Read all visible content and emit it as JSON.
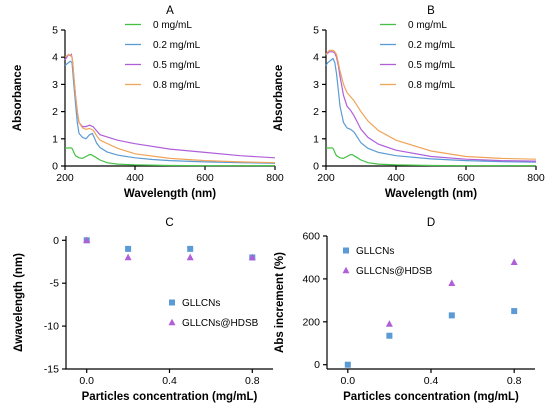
{
  "chart_data": [
    {
      "type": "line",
      "title": "A",
      "xlabel": "Wavelength (nm)",
      "ylabel": "Absorbance",
      "xlim": [
        200,
        800
      ],
      "ylim": [
        0,
        5
      ],
      "xticks": [
        200,
        400,
        600,
        800
      ],
      "yticks": [
        0,
        1,
        2,
        3,
        4,
        5
      ],
      "legend": "top-left",
      "series": [
        {
          "name": "0 mg/mL",
          "color": "#44c144",
          "x": [
            200,
            205,
            210,
            215,
            218,
            220,
            222,
            225,
            230,
            240,
            250,
            260,
            270,
            275,
            280,
            290,
            300,
            320,
            350,
            400,
            500,
            600,
            700,
            800
          ],
          "y": [
            0.65,
            0.66,
            0.66,
            0.67,
            0.66,
            0.65,
            0.6,
            0.5,
            0.38,
            0.3,
            0.28,
            0.35,
            0.42,
            0.42,
            0.38,
            0.3,
            0.22,
            0.12,
            0.07,
            0.04,
            0.02,
            0.01,
            0.01,
            0.01
          ]
        },
        {
          "name": "0.2 mg/mL",
          "color": "#5b9bd5",
          "x": [
            200,
            205,
            210,
            215,
            218,
            220,
            222,
            225,
            230,
            235,
            240,
            250,
            260,
            270,
            278,
            285,
            290,
            300,
            320,
            350,
            400,
            450,
            500,
            600,
            700,
            800
          ],
          "y": [
            3.7,
            3.75,
            3.8,
            3.85,
            3.82,
            3.8,
            3.5,
            3.0,
            2.3,
            1.6,
            1.2,
            1.05,
            1.0,
            1.15,
            1.2,
            1.0,
            0.85,
            0.68,
            0.52,
            0.4,
            0.3,
            0.24,
            0.2,
            0.15,
            0.12,
            0.1
          ]
        },
        {
          "name": "0.5 mg/mL",
          "color": "#b05fd8",
          "x": [
            200,
            205,
            210,
            215,
            218,
            220,
            222,
            225,
            230,
            235,
            240,
            250,
            260,
            270,
            280,
            290,
            300,
            350,
            400,
            500,
            600,
            700,
            800
          ],
          "y": [
            3.9,
            4.0,
            4.1,
            4.05,
            4.1,
            4.0,
            3.8,
            3.3,
            2.6,
            2.0,
            1.6,
            1.45,
            1.45,
            1.5,
            1.45,
            1.3,
            1.15,
            0.95,
            0.82,
            0.62,
            0.5,
            0.38,
            0.3
          ]
        },
        {
          "name": "0.8 mg/mL",
          "color": "#f0a45a",
          "x": [
            200,
            205,
            210,
            215,
            218,
            220,
            222,
            225,
            230,
            235,
            240,
            250,
            260,
            270,
            280,
            290,
            300,
            350,
            400,
            500,
            600,
            700,
            800
          ],
          "y": [
            4.0,
            4.05,
            4.1,
            4.08,
            4.05,
            4.0,
            3.8,
            3.3,
            2.6,
            2.0,
            1.6,
            1.4,
            1.35,
            1.38,
            1.32,
            1.12,
            0.95,
            0.65,
            0.45,
            0.28,
            0.2,
            0.15,
            0.12
          ]
        }
      ]
    },
    {
      "type": "line",
      "title": "B",
      "xlabel": "Wavelength (nm)",
      "ylabel": "Absorbance",
      "xlim": [
        200,
        800
      ],
      "ylim": [
        0,
        5
      ],
      "xticks": [
        200,
        400,
        600,
        800
      ],
      "yticks": [
        0,
        1,
        2,
        3,
        4,
        5
      ],
      "legend": "top-right",
      "series": [
        {
          "name": "0 mg/mL",
          "color": "#44c144",
          "x": [
            200,
            205,
            210,
            215,
            218,
            220,
            222,
            225,
            230,
            240,
            250,
            260,
            270,
            275,
            280,
            290,
            300,
            320,
            350,
            400,
            500,
            600,
            700,
            800
          ],
          "y": [
            0.65,
            0.66,
            0.66,
            0.67,
            0.66,
            0.65,
            0.6,
            0.5,
            0.38,
            0.3,
            0.28,
            0.35,
            0.42,
            0.42,
            0.38,
            0.3,
            0.22,
            0.12,
            0.07,
            0.04,
            0.02,
            0.01,
            0.01,
            0.01
          ]
        },
        {
          "name": "0.2 mg/mL",
          "color": "#5b9bd5",
          "x": [
            200,
            205,
            210,
            215,
            220,
            225,
            230,
            235,
            240,
            250,
            260,
            270,
            280,
            290,
            300,
            320,
            350,
            400,
            500,
            600,
            700,
            800
          ],
          "y": [
            3.7,
            3.8,
            3.85,
            3.9,
            3.95,
            3.8,
            3.4,
            2.8,
            2.2,
            1.6,
            1.4,
            1.35,
            1.25,
            1.05,
            0.85,
            0.65,
            0.5,
            0.38,
            0.26,
            0.2,
            0.16,
            0.14
          ]
        },
        {
          "name": "0.5 mg/mL",
          "color": "#b05fd8",
          "x": [
            200,
            205,
            210,
            215,
            220,
            225,
            230,
            235,
            240,
            250,
            260,
            270,
            280,
            290,
            300,
            320,
            350,
            400,
            500,
            600,
            700,
            800
          ],
          "y": [
            4.1,
            4.15,
            4.2,
            4.2,
            4.2,
            4.15,
            4.0,
            3.7,
            3.3,
            2.6,
            2.2,
            2.05,
            1.85,
            1.6,
            1.35,
            1.05,
            0.8,
            0.58,
            0.35,
            0.25,
            0.2,
            0.18
          ]
        },
        {
          "name": "0.8 mg/mL",
          "color": "#f0a45a",
          "x": [
            200,
            205,
            210,
            215,
            220,
            225,
            230,
            235,
            240,
            250,
            260,
            270,
            280,
            290,
            300,
            320,
            350,
            400,
            500,
            600,
            700,
            800
          ],
          "y": [
            4.1,
            4.2,
            4.25,
            4.25,
            4.25,
            4.2,
            4.1,
            3.8,
            3.5,
            3.0,
            2.7,
            2.55,
            2.4,
            2.2,
            2.0,
            1.65,
            1.3,
            0.95,
            0.55,
            0.35,
            0.28,
            0.25
          ]
        }
      ]
    },
    {
      "type": "scatter",
      "title": "C",
      "xlabel": "Particles concentration (mg/mL)",
      "ylabel": "Δwavelength (nm)",
      "xlim": [
        -0.1,
        0.9
      ],
      "ylim": [
        -15,
        0.5
      ],
      "xticks": [
        0.0,
        0.4,
        0.8
      ],
      "xticklabels": [
        "0.0",
        "0.4",
        "0.8"
      ],
      "yticks": [
        0,
        -5,
        -10,
        -15
      ],
      "legend": "center-right",
      "series": [
        {
          "name": "GLLCNs",
          "color": "#5b9bd5",
          "marker": "square",
          "x": [
            0.0,
            0.2,
            0.5,
            0.8
          ],
          "y": [
            0,
            -1,
            -1,
            -2
          ]
        },
        {
          "name": "GLLCNs@HDSB",
          "color": "#b05fd8",
          "marker": "triangle",
          "x": [
            0.0,
            0.2,
            0.5,
            0.8
          ],
          "y": [
            0,
            -2,
            -2,
            -2
          ]
        }
      ]
    },
    {
      "type": "scatter",
      "title": "D",
      "xlabel": "Particles concentration (mg/mL)",
      "ylabel": "Abs increment (%)",
      "xlim": [
        -0.1,
        0.9
      ],
      "ylim": [
        -20,
        600
      ],
      "xticks": [
        0.0,
        0.4,
        0.8
      ],
      "xticklabels": [
        "0.0",
        "0.4",
        "0.8"
      ],
      "yticks": [
        0,
        200,
        400,
        600
      ],
      "legend": "top-left",
      "series": [
        {
          "name": "GLLCNs",
          "color": "#5b9bd5",
          "marker": "square",
          "x": [
            0.0,
            0.2,
            0.5,
            0.8
          ],
          "y": [
            0,
            135,
            230,
            250
          ]
        },
        {
          "name": "GLLCNs@HDSB",
          "color": "#b05fd8",
          "marker": "triangle",
          "x": [
            0.2,
            0.5,
            0.8
          ],
          "y": [
            190,
            380,
            478
          ]
        }
      ]
    }
  ]
}
